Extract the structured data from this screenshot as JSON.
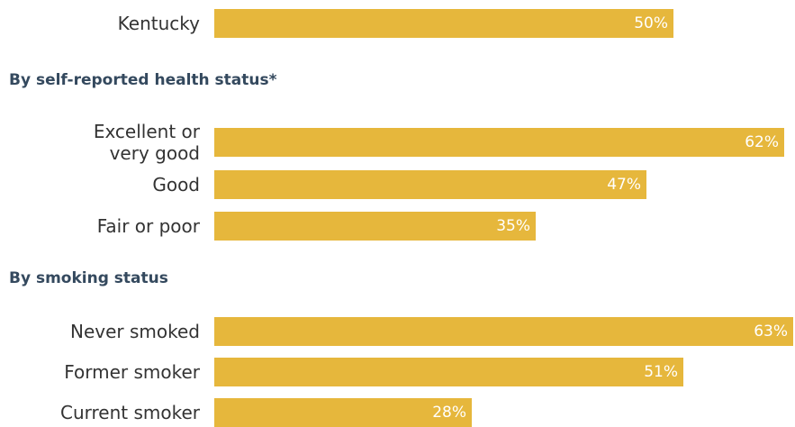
{
  "chart_data": {
    "type": "bar",
    "orientation": "horizontal",
    "value_format": "percent",
    "sections": [
      {
        "heading": "",
        "rows": [
          {
            "label": "Kentucky",
            "value": 50,
            "value_label": "50%"
          }
        ]
      },
      {
        "heading": "By self-reported health status*",
        "rows": [
          {
            "label": "Excellent or very good",
            "label_lines": [
              "Excellent or",
              "very good"
            ],
            "value": 62,
            "value_label": "62%"
          },
          {
            "label": "Good",
            "value": 47,
            "value_label": "47%"
          },
          {
            "label": "Fair or poor",
            "value": 35,
            "value_label": "35%"
          }
        ]
      },
      {
        "heading": "By smoking status",
        "rows": [
          {
            "label": "Never smoked",
            "value": 63,
            "value_label": "63%"
          },
          {
            "label": "Former smoker",
            "value": 51,
            "value_label": "51%"
          },
          {
            "label": "Current smoker",
            "value": 28,
            "value_label": "28%"
          }
        ]
      }
    ],
    "bar_color": "#e6b73c",
    "value_label_color": "#ffffff",
    "heading_color": "#34495e",
    "grid": false,
    "legend": "none"
  }
}
